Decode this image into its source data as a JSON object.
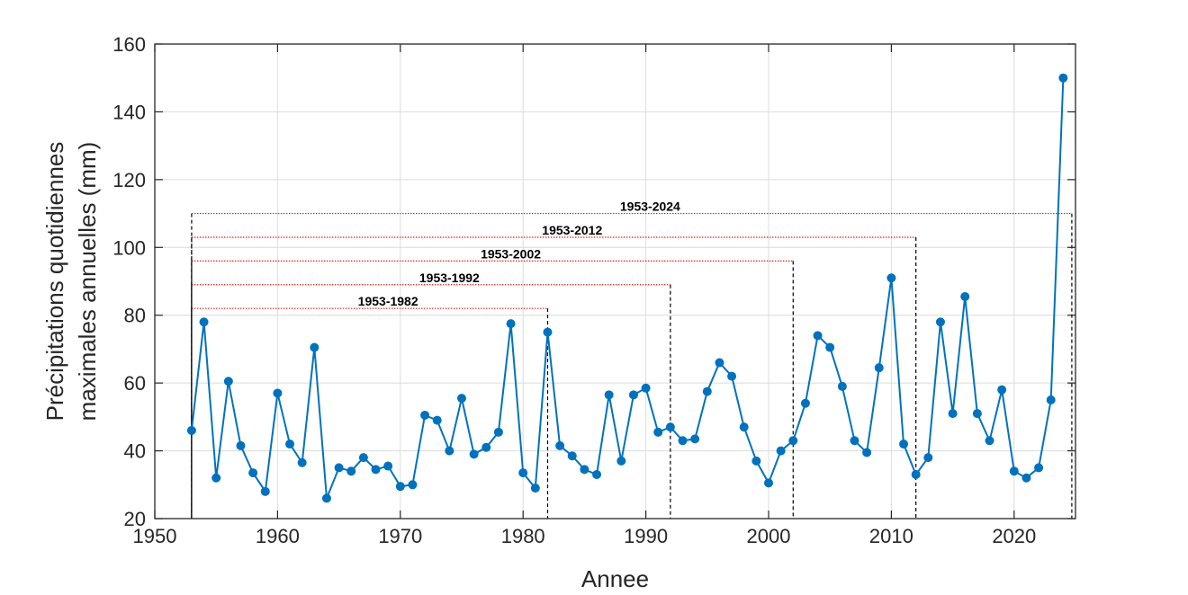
{
  "chart_data": {
    "type": "line",
    "title": "",
    "xlabel": "Annee",
    "ylabel_lines": [
      "Précipitations quotidiennes",
      "maximales annuelles (mm)"
    ],
    "xlim": [
      1950,
      2025
    ],
    "ylim": [
      20,
      160
    ],
    "xticks": [
      1950,
      1960,
      1970,
      1980,
      1990,
      2000,
      2010,
      2020
    ],
    "yticks": [
      20,
      40,
      60,
      80,
      100,
      120,
      140,
      160
    ],
    "grid": true,
    "colors": {
      "series": "#0072BD",
      "period_line": "#E0201B",
      "marker_line": "#000000"
    },
    "series": [
      {
        "x": [
          1953,
          1954,
          1955,
          1956,
          1957,
          1958,
          1959,
          1960,
          1961,
          1962,
          1963,
          1964,
          1965,
          1966,
          1967,
          1968,
          1969,
          1970,
          1971,
          1972,
          1973,
          1974,
          1975,
          1976,
          1977,
          1978,
          1979,
          1980,
          1981,
          1982,
          1983,
          1984,
          1985,
          1986,
          1987,
          1988,
          1989,
          1990,
          1991,
          1992,
          1993,
          1994,
          1995,
          1996,
          1997,
          1998,
          1999,
          2000,
          2001,
          2002,
          2003,
          2004,
          2005,
          2006,
          2007,
          2008,
          2009,
          2010,
          2011,
          2012,
          2013,
          2014,
          2015,
          2016,
          2017,
          2018,
          2019,
          2020,
          2021,
          2022,
          2023,
          2024
        ],
        "y": [
          46,
          78,
          32,
          60.5,
          41.5,
          33.5,
          28,
          57,
          42,
          36.5,
          70.5,
          26,
          35,
          34,
          38,
          34.5,
          35.5,
          29.5,
          30,
          50.5,
          49,
          40,
          55.5,
          39,
          41,
          45.5,
          77.5,
          33.5,
          29,
          75,
          41.5,
          38.5,
          34.5,
          33,
          56.5,
          37,
          56.5,
          58.5,
          45.5,
          47,
          43,
          43.5,
          57.5,
          66,
          62,
          47,
          37,
          30.5,
          40,
          43,
          54,
          74,
          70.5,
          59,
          43,
          39.5,
          64.5,
          91,
          42,
          33,
          38,
          78,
          51,
          85.5,
          51,
          43,
          58,
          34,
          32,
          35,
          55,
          150
        ]
      }
    ],
    "periods": [
      {
        "label": "1953-1982",
        "start": 1953,
        "end": 1982,
        "level": 82
      },
      {
        "label": "1953-1992",
        "start": 1953,
        "end": 1992,
        "level": 89
      },
      {
        "label": "1953-2002",
        "start": 1953,
        "end": 2002,
        "level": 96
      },
      {
        "label": "1953-2012",
        "start": 1953,
        "end": 2012,
        "level": 103
      },
      {
        "label": "1953-2024",
        "start": 1953,
        "end": 2024.7,
        "level": 110
      }
    ]
  }
}
